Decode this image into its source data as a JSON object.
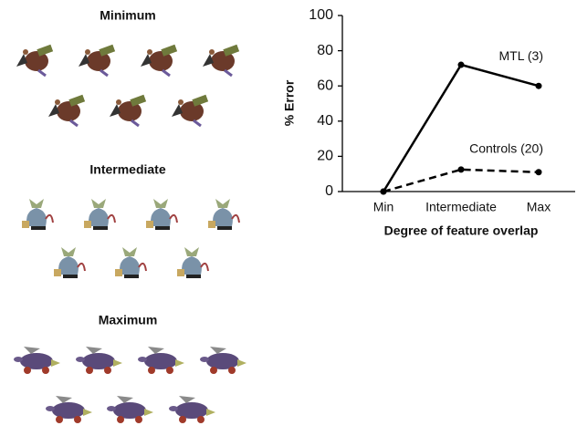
{
  "stimuli": {
    "labels": [
      "Minimum",
      "Intermediate",
      "Maximum"
    ]
  },
  "chart_data": {
    "type": "line",
    "categories": [
      "Min",
      "Intermediate",
      "Max"
    ],
    "series": [
      {
        "name": "MTL (3)",
        "color": "#000000",
        "line_style": "solid",
        "values": [
          0,
          72,
          60
        ]
      },
      {
        "name": "Controls (20)",
        "color": "#000000",
        "line_style": "dashed",
        "values": [
          0,
          12.5,
          11
        ]
      }
    ],
    "y_label": "% Error",
    "x_label": "Degree of feature overlap",
    "ylim": [
      0,
      100
    ],
    "yticks": [
      0,
      20,
      40,
      60,
      80,
      100
    ],
    "grid": false
  }
}
